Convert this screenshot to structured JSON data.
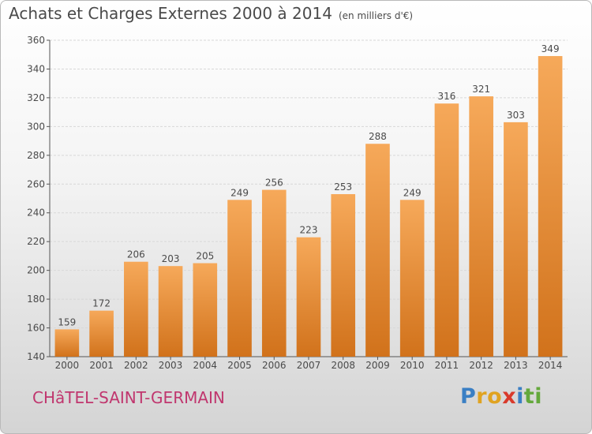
{
  "title": "Achats et Charges Externes 2000 à 2014",
  "subtitle": "(en milliers d'€)",
  "commune": "CHâTEL-SAINT-GERMAIN",
  "brand": {
    "letters": [
      "P",
      "r",
      "o",
      "x",
      "i",
      "t",
      "i"
    ],
    "colors": [
      "#3a7fc4",
      "#e0a321",
      "#e0a321",
      "#d93a2b",
      "#3a7fc4",
      "#64a83c",
      "#64a83c"
    ]
  },
  "colors": {
    "bar_light": "#f6a95a",
    "bar_dark": "#d1721b",
    "grid": "#d8d8d8",
    "text": "#4a4a4a",
    "accent": "#c0366e"
  },
  "chart_data": {
    "type": "bar",
    "title": "Achats et Charges Externes 2000 à 2014",
    "subtitle": "(en milliers d'€)",
    "xlabel": "",
    "ylabel": "",
    "categories": [
      "2000",
      "2001",
      "2002",
      "2003",
      "2004",
      "2005",
      "2006",
      "2007",
      "2008",
      "2009",
      "2010",
      "2011",
      "2012",
      "2013",
      "2014"
    ],
    "values": [
      159,
      172,
      206,
      203,
      205,
      249,
      256,
      223,
      253,
      288,
      249,
      316,
      321,
      303,
      349
    ],
    "ylim": [
      140,
      360
    ],
    "yticks": [
      140,
      160,
      180,
      200,
      220,
      240,
      260,
      280,
      300,
      320,
      340,
      360
    ],
    "grid": true,
    "legend": "none"
  }
}
